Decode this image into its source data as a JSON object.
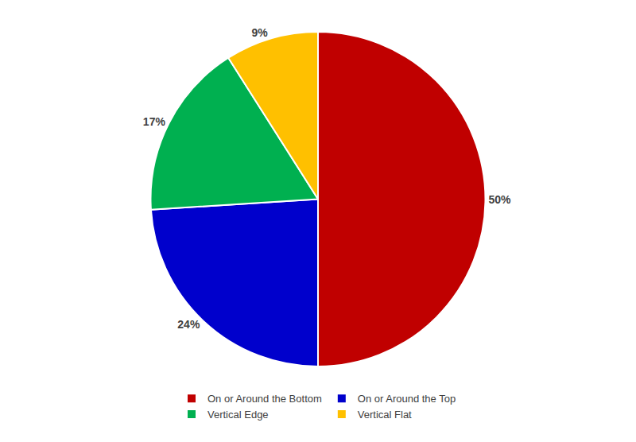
{
  "chart_data": {
    "type": "pie",
    "categories": [
      "On or Around the Bottom",
      "On or Around the Top",
      "Vertical Edge",
      "Vertical Flat"
    ],
    "values": [
      50,
      24,
      17,
      9
    ],
    "value_labels": [
      "50%",
      "24%",
      "17%",
      "9%"
    ],
    "colors": [
      "#c00000",
      "#0000cc",
      "#00b050",
      "#ffc000"
    ],
    "data_labels": true,
    "legend": "bottom"
  }
}
